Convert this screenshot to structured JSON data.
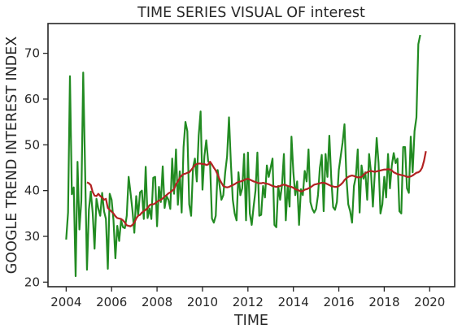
{
  "chart_data": {
    "type": "line",
    "title": "TIME SERIES VISUAL OF interest",
    "xlabel": "TIME",
    "ylabel": "GOOGLE TREND INTEREST INDEX",
    "xlim": [
      2003.2,
      2021.1
    ],
    "ylim": [
      19,
      76.5
    ],
    "xticks": [
      2004,
      2006,
      2008,
      2010,
      2012,
      2014,
      2016,
      2018,
      2020
    ],
    "xtick_labels": [
      "2004",
      "2006",
      "2008",
      "2010",
      "2012",
      "2014",
      "2016",
      "2018",
      "2020"
    ],
    "yticks": [
      20,
      30,
      40,
      50,
      60,
      70
    ],
    "ytick_labels": [
      "20",
      "30",
      "40",
      "50",
      "60",
      "70"
    ],
    "grid": false,
    "legend": "none",
    "series": [
      {
        "color": "#228B22",
        "start": 2004.0,
        "step": 0.08333333,
        "values": [
          29.3,
          35.2,
          65.0,
          39.2,
          40.7,
          21.3,
          46.3,
          31.5,
          37.7,
          65.8,
          44.5,
          22.7,
          35.8,
          39.8,
          35.2,
          27.3,
          38.2,
          36.0,
          34.5,
          39.5,
          35.5,
          33.8,
          22.9,
          39.3,
          38.0,
          33.5,
          25.2,
          32.3,
          29.0,
          33.5,
          32.0,
          31.8,
          34.5,
          43.0,
          39.5,
          35.7,
          30.8,
          38.8,
          34.5,
          39.6,
          40.0,
          33.8,
          45.2,
          34.0,
          36.1,
          33.8,
          42.8,
          43.0,
          32.2,
          40.8,
          37.5,
          45.3,
          36.2,
          38.8,
          38.0,
          36.0,
          47.0,
          39.3,
          49.0,
          36.9,
          44.2,
          35.2,
          49.5,
          55.0,
          53.0,
          37.0,
          34.5,
          45.0,
          47.0,
          42.0,
          52.0,
          57.3,
          40.2,
          47.5,
          51.0,
          46.4,
          45.8,
          33.9,
          33.0,
          34.5,
          44.5,
          41.2,
          38.0,
          39.0,
          44.0,
          47.5,
          56.0,
          46.0,
          38.0,
          35.0,
          33.5,
          44.0,
          39.0,
          40.5,
          48.0,
          33.5,
          48.3,
          35.0,
          32.5,
          36.5,
          40.0,
          48.3,
          34.5,
          34.7,
          41.0,
          38.5,
          45.5,
          43.0,
          45.0,
          47.0,
          32.5,
          32.0,
          41.0,
          38.0,
          41.2,
          48.0,
          33.5,
          41.0,
          36.5,
          51.8,
          44.0,
          39.0,
          42.0,
          32.5,
          40.3,
          39.0,
          44.3,
          42.0,
          49.0,
          37.5,
          36.0,
          35.2,
          36.0,
          39.0,
          45.0,
          47.8,
          35.5,
          48.0,
          43.0,
          52.0,
          42.8,
          36.4,
          35.8,
          37.5,
          44.5,
          47.5,
          50.5,
          54.5,
          43.0,
          37.0,
          35.5,
          33.0,
          41.0,
          43.0,
          49.0,
          35.2,
          45.5,
          42.6,
          44.0,
          38.0,
          48.0,
          44.0,
          36.5,
          43.8,
          51.5,
          46.0,
          35.0,
          37.0,
          43.0,
          38.5,
          48.0,
          40.5,
          45.5,
          48.2,
          46.0,
          47.0,
          35.5,
          35.0,
          49.5,
          49.5,
          40.5,
          39.5,
          51.8,
          44.0,
          53.0,
          56.0,
          72.0,
          74.0
        ]
      },
      {
        "color": "#B22222",
        "start": 2004.917,
        "step": 0.08333333,
        "values": [
          41.8,
          41.6,
          41.2,
          39.7,
          38.9,
          38.8,
          39.3,
          38.8,
          38.5,
          38.0,
          38.2,
          36.2,
          35.8,
          35.4,
          35.0,
          34.4,
          34.0,
          33.9,
          33.8,
          33.5,
          33.0,
          32.4,
          32.3,
          32.2,
          32.5,
          33.0,
          33.9,
          34.5,
          34.7,
          35.2,
          35.5,
          35.8,
          36.2,
          36.8,
          37.0,
          37.0,
          37.2,
          37.6,
          37.8,
          38.0,
          38.3,
          38.7,
          39.0,
          39.4,
          39.6,
          40.0,
          40.3,
          41.4,
          42.0,
          42.8,
          43.3,
          43.6,
          43.7,
          43.9,
          44.0,
          44.5,
          45.0,
          45.6,
          45.8,
          45.9,
          45.9,
          45.8,
          45.8,
          45.6,
          45.7,
          46.3,
          45.7,
          45.0,
          44.4,
          43.5,
          42.5,
          41.7,
          41.0,
          40.8,
          40.7,
          40.8,
          41.0,
          41.2,
          41.4,
          41.7,
          41.9,
          42.0,
          42.1,
          42.3,
          42.5,
          42.6,
          42.4,
          42.2,
          42.0,
          41.9,
          41.7,
          41.6,
          41.6,
          41.7,
          41.6,
          41.5,
          41.4,
          41.2,
          41.0,
          40.9,
          40.8,
          40.9,
          41.0,
          41.2,
          41.3,
          41.2,
          41.0,
          40.9,
          40.8,
          40.6,
          40.3,
          40.2,
          40.0,
          39.8,
          39.9,
          40.2,
          40.3,
          40.5,
          40.7,
          41.0,
          41.3,
          41.4,
          41.5,
          41.6,
          41.7,
          41.7,
          41.6,
          41.4,
          41.2,
          41.0,
          40.9,
          40.8,
          40.8,
          41.0,
          41.3,
          41.7,
          42.3,
          42.7,
          43.0,
          43.2,
          43.3,
          43.2,
          43.0,
          42.9,
          42.9,
          43.0,
          43.4,
          43.8,
          44.0,
          44.2,
          44.3,
          44.2,
          44.1,
          44.2,
          44.3,
          44.4,
          44.5,
          44.6,
          44.6,
          44.7,
          44.6,
          44.4,
          44.0,
          43.8,
          43.6,
          43.5,
          43.4,
          43.3,
          43.2,
          43.0,
          43.0,
          43.1,
          43.3,
          43.6,
          43.9,
          44.0,
          44.3,
          45.0,
          46.5,
          48.6
        ]
      }
    ]
  }
}
